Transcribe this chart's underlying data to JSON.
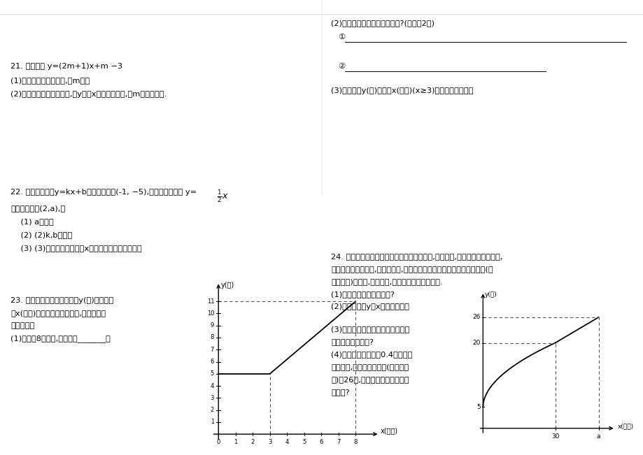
{
  "page_bg": "#ffffff",
  "text_color": "#000000",
  "q2_line1": "(2)从图象上你能获得哪些信息?(请写出2条)",
  "q2_line2": "①",
  "q2_line3": "②",
  "q2_line4": "(3)求出收费y(元)与行使x(千米)(x≥3)之间的函数关系式",
  "q21_line1": "21. 已知函数 y=(2m+1)x+m −3",
  "q21_line2": "(1)若函数图象经过原点,求m的値",
  "q21_line3": "(2)若这个函数是一次函数,且y随着x的增大而减小,求m的取値范围.",
  "q22_line1": "22. 已知一次函数y=kx+b的图象经过点(-1, −5),且与正比例函数 y=",
  "q22_line2": "图象相交于点(2,a),求",
  "q22_line3": "    (1) a的値。",
  "q22_line4": "    (2) (2)k,b的値。",
  "q22_line5": "    (3) (3)这两个函数图象与x轴所围成的三角形面积。",
  "q23_line1": "23. 如图是某出租车单程收费y(元)与行驶路",
  "q23_line2": "程x(千米)之间的函数关系图象,根据图象回",
  "q23_line3": "答下列问题",
  "q23_line4": "(1)当行使8千米时,收费应为_______元",
  "q24_line1": "24. 一农民带上若干千克自产的土豆进城出售,为了方便,他带了一些零錢备用,",
  "q24_line2": "按市场价售出一些后,又降价出售,售出的土豆千克数与他手中持有的錢数(含",
  "q24_line3": "备用零錢)的关系,如图所示,结合图象回答下列问题.",
  "q24_line4": "(1)农民自带的零錢是多少?",
  "q24_line5": "(2)试求降价前y与x之间的关系式",
  "q24_line6": "(3)由表达式你能求出降价前每千克",
  "q24_line7": "的土豆价格是多少?",
  "q24_line8": "(4)降价后他按每千克0.4元将剩余",
  "q24_line9": "土豆售完,这时他手中的錢(含备用零",
  "q24_line10": "錢)是26元,试问他一共带了多少千",
  "q24_line11": "克土豆?"
}
